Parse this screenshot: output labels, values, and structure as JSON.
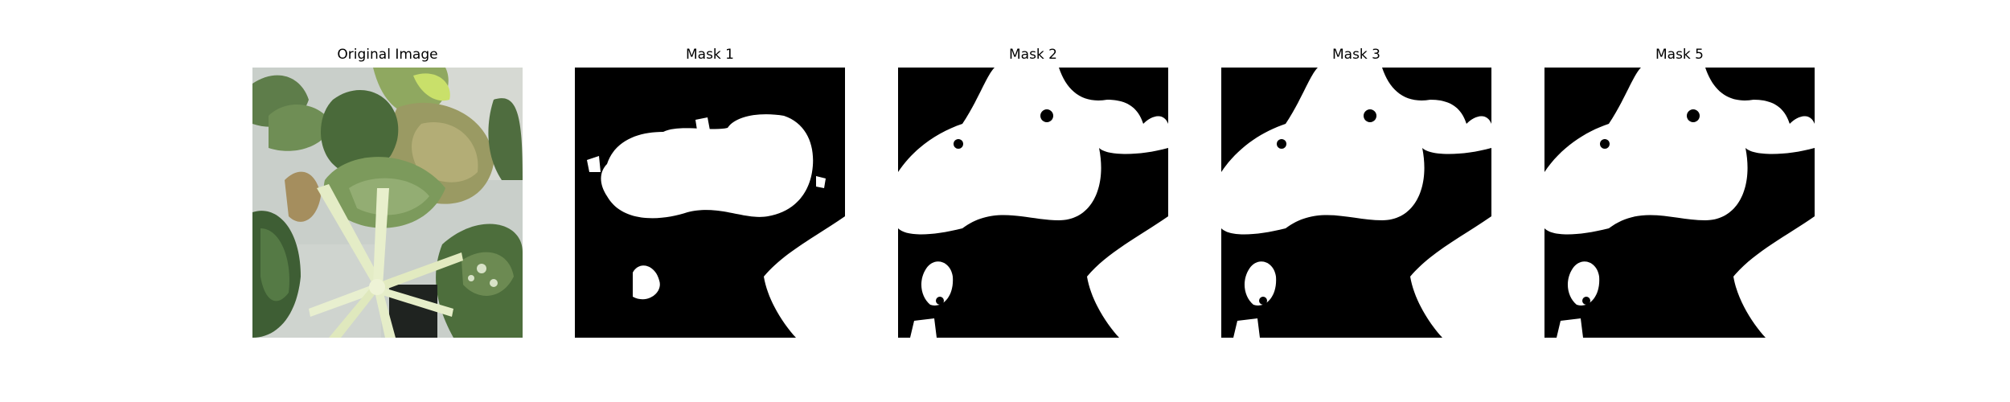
{
  "figure": {
    "panels": [
      {
        "title": "Original Image",
        "kind": "photo"
      },
      {
        "title": "Mask 1",
        "kind": "mask"
      },
      {
        "title": "Mask 2",
        "kind": "mask"
      },
      {
        "title": "Mask 3",
        "kind": "mask"
      },
      {
        "title": "Mask 5",
        "kind": "mask"
      }
    ]
  },
  "colors": {
    "background": "#ffffff",
    "mask_background": "#000000",
    "mask_foreground": "#ffffff"
  }
}
